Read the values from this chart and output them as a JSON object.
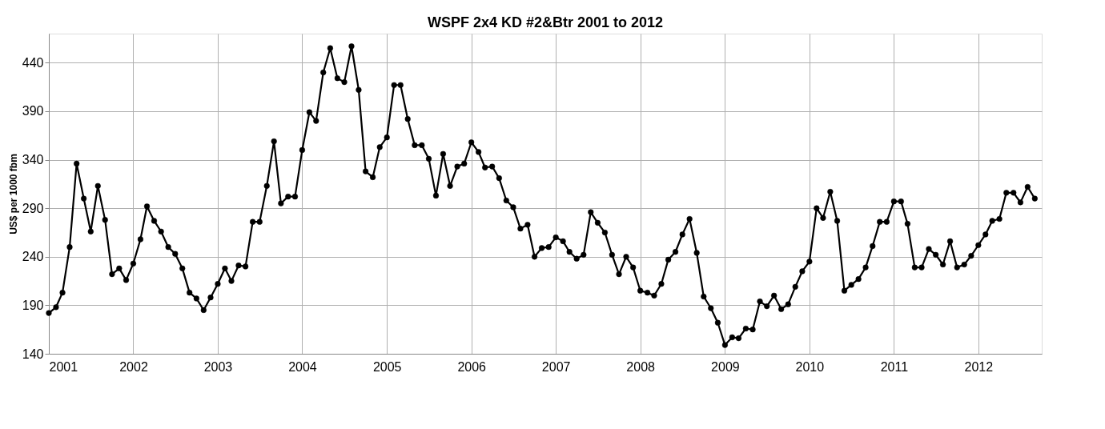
{
  "chart_data": {
    "type": "line",
    "title": "WSPF  2x4  KD  #2&Btr  2001 to 2012",
    "ylabel": "US$ per 1000 fbm",
    "x": [
      "2001-01",
      "2001-02",
      "2001-03",
      "2001-04",
      "2001-05",
      "2001-06",
      "2001-07",
      "2001-08",
      "2001-09",
      "2001-10",
      "2001-11",
      "2001-12",
      "2002-01",
      "2002-02",
      "2002-03",
      "2002-04",
      "2002-05",
      "2002-06",
      "2002-07",
      "2002-08",
      "2002-09",
      "2002-10",
      "2002-11",
      "2002-12",
      "2003-01",
      "2003-02",
      "2003-03",
      "2003-04",
      "2003-05",
      "2003-06",
      "2003-07",
      "2003-08",
      "2003-09",
      "2003-10",
      "2003-11",
      "2003-12",
      "2004-01",
      "2004-02",
      "2004-03",
      "2004-04",
      "2004-05",
      "2004-06",
      "2004-07",
      "2004-08",
      "2004-09",
      "2004-10",
      "2004-11",
      "2004-12",
      "2005-01",
      "2005-02",
      "2005-03",
      "2005-04",
      "2005-05",
      "2005-06",
      "2005-07",
      "2005-08",
      "2005-09",
      "2005-10",
      "2005-11",
      "2005-12",
      "2006-01",
      "2006-02",
      "2006-03",
      "2006-04",
      "2006-05",
      "2006-06",
      "2006-07",
      "2006-08",
      "2006-09",
      "2006-10",
      "2006-11",
      "2006-12",
      "2007-01",
      "2007-02",
      "2007-03",
      "2007-04",
      "2007-05",
      "2007-06",
      "2007-07",
      "2007-08",
      "2007-09",
      "2007-10",
      "2007-11",
      "2007-12",
      "2008-01",
      "2008-02",
      "2008-03",
      "2008-04",
      "2008-05",
      "2008-06",
      "2008-07",
      "2008-08",
      "2008-09",
      "2008-10",
      "2008-11",
      "2008-12",
      "2009-01",
      "2009-02",
      "2009-03",
      "2009-04",
      "2009-05",
      "2009-06",
      "2009-07",
      "2009-08",
      "2009-09",
      "2009-10",
      "2009-11",
      "2009-12",
      "2010-01",
      "2010-02",
      "2010-03",
      "2010-04",
      "2010-05",
      "2010-06",
      "2010-07",
      "2010-08",
      "2010-09",
      "2010-10",
      "2010-11",
      "2010-12",
      "2011-01",
      "2011-02",
      "2011-03",
      "2011-04",
      "2011-05",
      "2011-06",
      "2011-07",
      "2011-08",
      "2011-09",
      "2011-10",
      "2011-11",
      "2011-12",
      "2012-01",
      "2012-02",
      "2012-03",
      "2012-04",
      "2012-05",
      "2012-06",
      "2012-07",
      "2012-08",
      "2012-09"
    ],
    "series": [
      {
        "color": "#000000",
        "values": [
          182,
          188,
          203,
          250,
          336,
          300,
          266,
          313,
          278,
          222,
          228,
          216,
          233,
          258,
          292,
          277,
          266,
          250,
          243,
          228,
          203,
          197,
          185,
          198,
          212,
          228,
          215,
          231,
          230,
          276,
          276,
          313,
          359,
          295,
          302,
          302,
          350,
          389,
          380,
          430,
          455,
          424,
          420,
          457,
          412,
          328,
          322,
          353,
          363,
          417,
          417,
          382,
          355,
          355,
          341,
          303,
          346,
          313,
          333,
          336,
          358,
          348,
          332,
          333,
          321,
          298,
          291,
          269,
          273,
          240,
          249,
          250,
          260,
          256,
          245,
          238,
          242,
          286,
          275,
          265,
          242,
          222,
          240,
          229,
          205,
          203,
          200,
          212,
          237,
          245,
          263,
          279,
          244,
          199,
          187,
          172,
          149,
          157,
          156,
          166,
          165,
          194,
          189,
          200,
          186,
          191,
          209,
          225,
          235,
          290,
          280,
          307,
          277,
          205,
          211,
          217,
          229,
          251,
          276,
          276,
          297,
          297,
          274,
          229,
          229,
          248,
          242,
          232,
          256,
          229,
          232,
          241,
          252,
          263,
          277,
          279,
          306,
          306,
          296,
          312,
          300
        ]
      }
    ],
    "xlim": [
      "2001-01",
      "2012-10"
    ],
    "xticks": [
      "2001",
      "2002",
      "2003",
      "2004",
      "2005",
      "2006",
      "2007",
      "2008",
      "2009",
      "2010",
      "2011",
      "2012"
    ],
    "ylim": [
      140,
      470
    ],
    "yticks": [
      140,
      190,
      240,
      290,
      340,
      390,
      440
    ],
    "grid": true,
    "marker": "circle",
    "line_style": "solid"
  }
}
